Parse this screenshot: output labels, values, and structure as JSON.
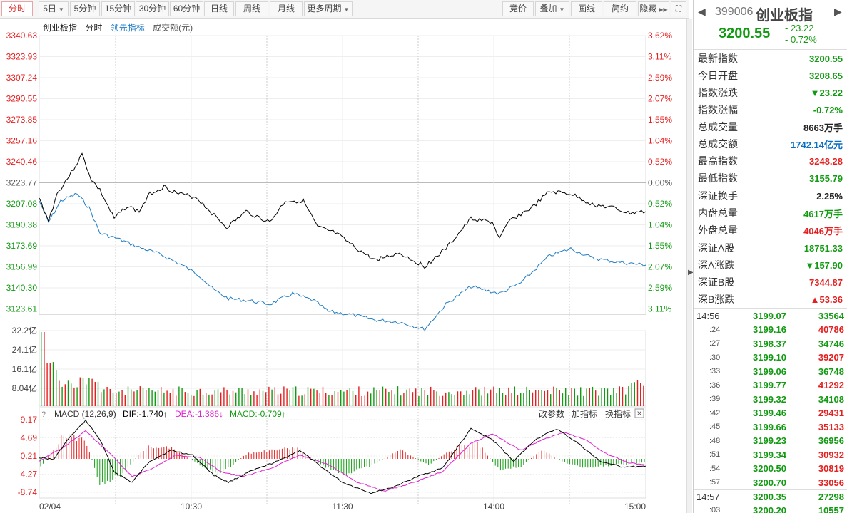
{
  "toolbar": {
    "left": [
      "分时",
      "5日",
      "5分钟",
      "15分钟",
      "30分钟",
      "60分钟",
      "日线",
      "周线",
      "月线",
      "更多周期"
    ],
    "right": [
      "竞价",
      "叠加",
      "画线",
      "简约",
      "隐藏"
    ]
  },
  "legend": {
    "name": "创业板指",
    "mode": "分时",
    "leading": "领先指标",
    "volume": "成交额(元)"
  },
  "price_axis": [
    "3340.63",
    "3323.93",
    "3307.24",
    "3290.55",
    "3273.85",
    "3257.16",
    "3240.46",
    "3223.77",
    "3207.08",
    "3190.38",
    "3173.69",
    "3156.99",
    "3140.30",
    "3123.61"
  ],
  "pct_axis": [
    "3.62%",
    "3.11%",
    "2.59%",
    "2.07%",
    "1.55%",
    "1.04%",
    "0.52%",
    "0.00%",
    "0.52%",
    "1.04%",
    "1.55%",
    "2.07%",
    "2.59%",
    "3.11%"
  ],
  "volume_axis": [
    "32.2亿",
    "24.1亿",
    "16.1亿",
    "8.04亿"
  ],
  "macd": {
    "title": "MACD (12,26,9)",
    "dif": "DIF:-1.740↑",
    "dea": "DEA:-1.386↓",
    "macd": "MACD:-0.709↑",
    "buttons": [
      "改参数",
      "加指标",
      "换指标"
    ],
    "axis": [
      "9.17",
      "4.69",
      "0.21",
      "-4.27",
      "-8.74"
    ]
  },
  "time_axis": [
    "02/04",
    "10:30",
    "11:30",
    "14:00",
    "15:00"
  ],
  "colors": {
    "up": "#e41f1f",
    "down": "#129b12",
    "price_line": "#000000",
    "lead_line": "#1f7cc4",
    "dea_line": "#e020d0"
  },
  "panel": {
    "code": "399006",
    "name": "创业板指",
    "price": "3200.55",
    "change": "- 23.22",
    "change_pct": "- 0.72%",
    "rows1": [
      {
        "label": "最新指数",
        "value": "3200.55",
        "color": "green"
      },
      {
        "label": "今日开盘",
        "value": "3208.65",
        "color": "green"
      },
      {
        "label": "指数涨跌",
        "value": "▼23.22",
        "color": "green"
      },
      {
        "label": "指数涨幅",
        "value": "-0.72%",
        "color": "green"
      },
      {
        "label": "总成交量",
        "value": "8663万手",
        "color": "dark"
      },
      {
        "label": "总成交额",
        "value": "1742.14亿元",
        "color": "blue"
      },
      {
        "label": "最高指数",
        "value": "3248.28",
        "color": "red"
      },
      {
        "label": "最低指数",
        "value": "3155.79",
        "color": "green"
      }
    ],
    "rows2": [
      {
        "label": "深证换手",
        "value": "2.25%",
        "color": "dark"
      },
      {
        "label": "内盘总量",
        "value": "4617万手",
        "color": "green"
      },
      {
        "label": "外盘总量",
        "value": "4046万手",
        "color": "red"
      }
    ],
    "rows3": [
      {
        "label": "深证A股",
        "value": "18751.33",
        "color": "green"
      },
      {
        "label": "深A涨跌",
        "value": "▼157.90",
        "color": "green"
      },
      {
        "label": "深证B股",
        "value": "7344.87",
        "color": "red"
      },
      {
        "label": "深B涨跌",
        "value": "▲53.36",
        "color": "red"
      }
    ],
    "ticks": [
      {
        "t": "14:56",
        "p": "3199.07",
        "q": "33564",
        "c": "green",
        "big": true
      },
      {
        "t": ":24",
        "p": "3199.16",
        "q": "40786",
        "c": "red"
      },
      {
        "t": ":27",
        "p": "3198.37",
        "q": "34746",
        "c": "green"
      },
      {
        "t": ":30",
        "p": "3199.10",
        "q": "39207",
        "c": "red"
      },
      {
        "t": ":33",
        "p": "3199.06",
        "q": "36748",
        "c": "green"
      },
      {
        "t": ":36",
        "p": "3199.77",
        "q": "41292",
        "c": "red"
      },
      {
        "t": ":39",
        "p": "3199.32",
        "q": "34108",
        "c": "green"
      },
      {
        "t": ":42",
        "p": "3199.46",
        "q": "29431",
        "c": "red"
      },
      {
        "t": ":45",
        "p": "3199.66",
        "q": "35133",
        "c": "red"
      },
      {
        "t": ":48",
        "p": "3199.23",
        "q": "36956",
        "c": "green"
      },
      {
        "t": ":51",
        "p": "3199.34",
        "q": "30932",
        "c": "red"
      },
      {
        "t": ":54",
        "p": "3200.50",
        "q": "30819",
        "c": "red"
      },
      {
        "t": ":57",
        "p": "3200.70",
        "q": "33056",
        "c": "red"
      },
      {
        "t": "14:57",
        "p": "3200.35",
        "q": "27298",
        "c": "green",
        "big": true
      },
      {
        "t": ":03",
        "p": "3200.20",
        "q": "10557",
        "c": "green"
      }
    ]
  }
}
